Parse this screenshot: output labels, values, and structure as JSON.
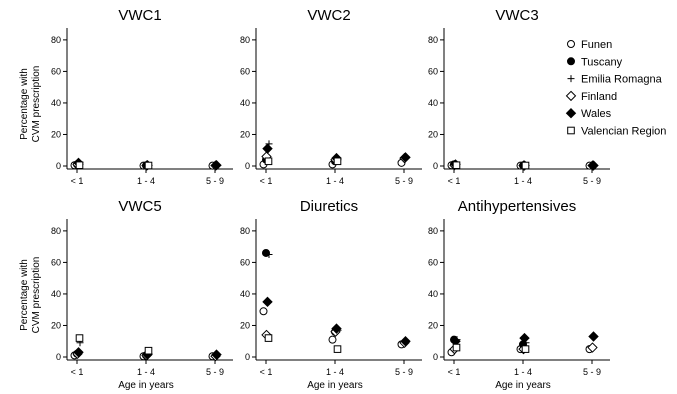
{
  "figure": {
    "ylabel_line1": "Percentage with",
    "ylabel_line2": "CVM prescription",
    "xlabel": "Age in years"
  },
  "legend": [
    {
      "name": "Funen",
      "marker": "circle-open"
    },
    {
      "name": "Tuscany",
      "marker": "circle-filled"
    },
    {
      "name": "Emilia Romagna",
      "marker": "plus"
    },
    {
      "name": "Finland",
      "marker": "diamond-open"
    },
    {
      "name": "Wales",
      "marker": "diamond-filled"
    },
    {
      "name": "Valencian Region",
      "marker": "square-open"
    }
  ],
  "chart_data": [
    {
      "type": "scatter",
      "title": "VWC1",
      "categories": [
        "< 1",
        "1 - 4",
        "5 - 9"
      ],
      "yticks": [
        0,
        20,
        40,
        60,
        80
      ],
      "ylim": [
        0,
        85
      ],
      "series": [
        {
          "name": "Funen",
          "values": [
            0.5,
            0.2,
            0.2
          ]
        },
        {
          "name": "Tuscany",
          "values": [
            1.0,
            0.3,
            null
          ]
        },
        {
          "name": "Emilia Romagna",
          "values": [
            1.0,
            0.3,
            null
          ]
        },
        {
          "name": "Finland",
          "values": [
            1.0,
            0.3,
            0.3
          ]
        },
        {
          "name": "Wales",
          "values": [
            2.0,
            0.5,
            0.5
          ]
        },
        {
          "name": "Valencian Region",
          "values": [
            0.5,
            0.3,
            null
          ]
        }
      ]
    },
    {
      "type": "scatter",
      "title": "VWC2",
      "categories": [
        "< 1",
        "1 - 4",
        "5 - 9"
      ],
      "yticks": [
        0,
        20,
        40,
        60,
        80
      ],
      "ylim": [
        0,
        85
      ],
      "series": [
        {
          "name": "Funen",
          "values": [
            1.0,
            1.0,
            2.0
          ]
        },
        {
          "name": "Tuscany",
          "values": [
            4.0,
            3.0,
            null
          ]
        },
        {
          "name": "Emilia Romagna",
          "values": [
            14.0,
            4.0,
            null
          ]
        },
        {
          "name": "Finland",
          "values": [
            6.0,
            4.0,
            5.0
          ]
        },
        {
          "name": "Wales",
          "values": [
            11.0,
            5.0,
            5.5
          ]
        },
        {
          "name": "Valencian Region",
          "values": [
            3.0,
            3.0,
            null
          ]
        }
      ]
    },
    {
      "type": "scatter",
      "title": "VWC3",
      "categories": [
        "< 1",
        "1 - 4",
        "5 - 9"
      ],
      "yticks": [
        0,
        20,
        40,
        60,
        80
      ],
      "ylim": [
        0,
        85
      ],
      "series": [
        {
          "name": "Funen",
          "values": [
            0.5,
            0.2,
            0.2
          ]
        },
        {
          "name": "Tuscany",
          "values": [
            1.0,
            0.3,
            null
          ]
        },
        {
          "name": "Emilia Romagna",
          "values": [
            1.0,
            0.3,
            null
          ]
        },
        {
          "name": "Finland",
          "values": [
            0.5,
            0.3,
            0.3
          ]
        },
        {
          "name": "Wales",
          "values": [
            1.0,
            0.3,
            0.3
          ]
        },
        {
          "name": "Valencian Region",
          "values": [
            0.5,
            0.3,
            null
          ]
        }
      ]
    },
    {
      "type": "scatter",
      "title": "VWC5",
      "categories": [
        "< 1",
        "1 - 4",
        "5 - 9"
      ],
      "yticks": [
        0,
        20,
        40,
        60,
        80
      ],
      "ylim": [
        0,
        85
      ],
      "series": [
        {
          "name": "Funen",
          "values": [
            1.0,
            0.5,
            0.5
          ]
        },
        {
          "name": "Tuscany",
          "values": [
            2.0,
            1.0,
            null
          ]
        },
        {
          "name": "Emilia Romagna",
          "values": [
            9.0,
            2.0,
            null
          ]
        },
        {
          "name": "Finland",
          "values": [
            2.0,
            1.0,
            0.5
          ]
        },
        {
          "name": "Wales",
          "values": [
            3.0,
            1.5,
            1.5
          ]
        },
        {
          "name": "Valencian Region",
          "values": [
            12.0,
            4.0,
            null
          ]
        }
      ]
    },
    {
      "type": "scatter",
      "title": "Diuretics",
      "categories": [
        "< 1",
        "1 - 4",
        "5 - 9"
      ],
      "yticks": [
        0,
        20,
        40,
        60,
        80
      ],
      "ylim": [
        0,
        85
      ],
      "series": [
        {
          "name": "Funen",
          "values": [
            29.0,
            11.0,
            8.0
          ]
        },
        {
          "name": "Tuscany",
          "values": [
            66.0,
            16.0,
            null
          ]
        },
        {
          "name": "Emilia Romagna",
          "values": [
            65.0,
            17.0,
            null
          ]
        },
        {
          "name": "Finland",
          "values": [
            14.0,
            16.0,
            9.0
          ]
        },
        {
          "name": "Wales",
          "values": [
            35.0,
            18.0,
            10.0
          ]
        },
        {
          "name": "Valencian Region",
          "values": [
            12.0,
            5.0,
            null
          ]
        }
      ]
    },
    {
      "type": "scatter",
      "title": "Antihypertensives",
      "categories": [
        "< 1",
        "1 - 4",
        "5 - 9"
      ],
      "yticks": [
        0,
        20,
        40,
        60,
        80
      ],
      "ylim": [
        0,
        85
      ],
      "series": [
        {
          "name": "Funen",
          "values": [
            3.0,
            5.0,
            5.0
          ]
        },
        {
          "name": "Tuscany",
          "values": [
            11.0,
            8.0,
            null
          ]
        },
        {
          "name": "Emilia Romagna",
          "values": [
            11.0,
            9.0,
            null
          ]
        },
        {
          "name": "Finland",
          "values": [
            5.0,
            5.0,
            6.0
          ]
        },
        {
          "name": "Wales",
          "values": [
            10.0,
            12.0,
            13.0
          ]
        },
        {
          "name": "Valencian Region",
          "values": [
            6.0,
            5.0,
            null
          ]
        }
      ]
    }
  ]
}
